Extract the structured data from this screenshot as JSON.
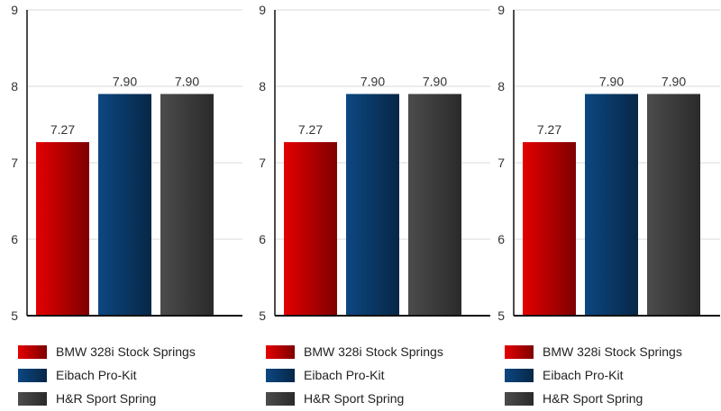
{
  "chart_data": [
    {
      "type": "bar",
      "title": "",
      "xlabel": "",
      "ylabel": "",
      "ylim": [
        5,
        9
      ],
      "yticks": [
        "5",
        "6",
        "7",
        "8",
        "9"
      ],
      "grid": true,
      "legend_position": "bottom",
      "categories": [
        "BMW 328i Stock Springs",
        "Eibach Pro-Kit",
        "H&R Sport Spring"
      ],
      "values": [
        7.27,
        7.9,
        7.9
      ],
      "data_labels": [
        "7.27",
        "7.90",
        "7.90"
      ],
      "colors": [
        "#cc0000",
        "#0b3f73",
        "#444444"
      ]
    },
    {
      "type": "bar",
      "title": "",
      "xlabel": "",
      "ylabel": "",
      "ylim": [
        5,
        9
      ],
      "yticks": [
        "5",
        "6",
        "7",
        "8",
        "9"
      ],
      "grid": true,
      "legend_position": "bottom",
      "categories": [
        "BMW 328i Stock Springs",
        "Eibach Pro-Kit",
        "H&R Sport Spring"
      ],
      "values": [
        7.27,
        7.9,
        7.9
      ],
      "data_labels": [
        "7.27",
        "7.90",
        "7.90"
      ],
      "colors": [
        "#cc0000",
        "#0b3f73",
        "#444444"
      ]
    },
    {
      "type": "bar",
      "title": "",
      "xlabel": "",
      "ylabel": "",
      "ylim": [
        5,
        9
      ],
      "yticks": [
        "5",
        "6",
        "7",
        "8",
        "9"
      ],
      "grid": true,
      "legend_position": "bottom",
      "categories": [
        "BMW 328i Stock Springs",
        "Eibach Pro-Kit",
        "H&R Sport Spring"
      ],
      "values": [
        7.27,
        7.9,
        7.9
      ],
      "data_labels": [
        "7.27",
        "7.90",
        "7.90"
      ],
      "colors": [
        "#cc0000",
        "#0b3f73",
        "#444444"
      ]
    }
  ]
}
